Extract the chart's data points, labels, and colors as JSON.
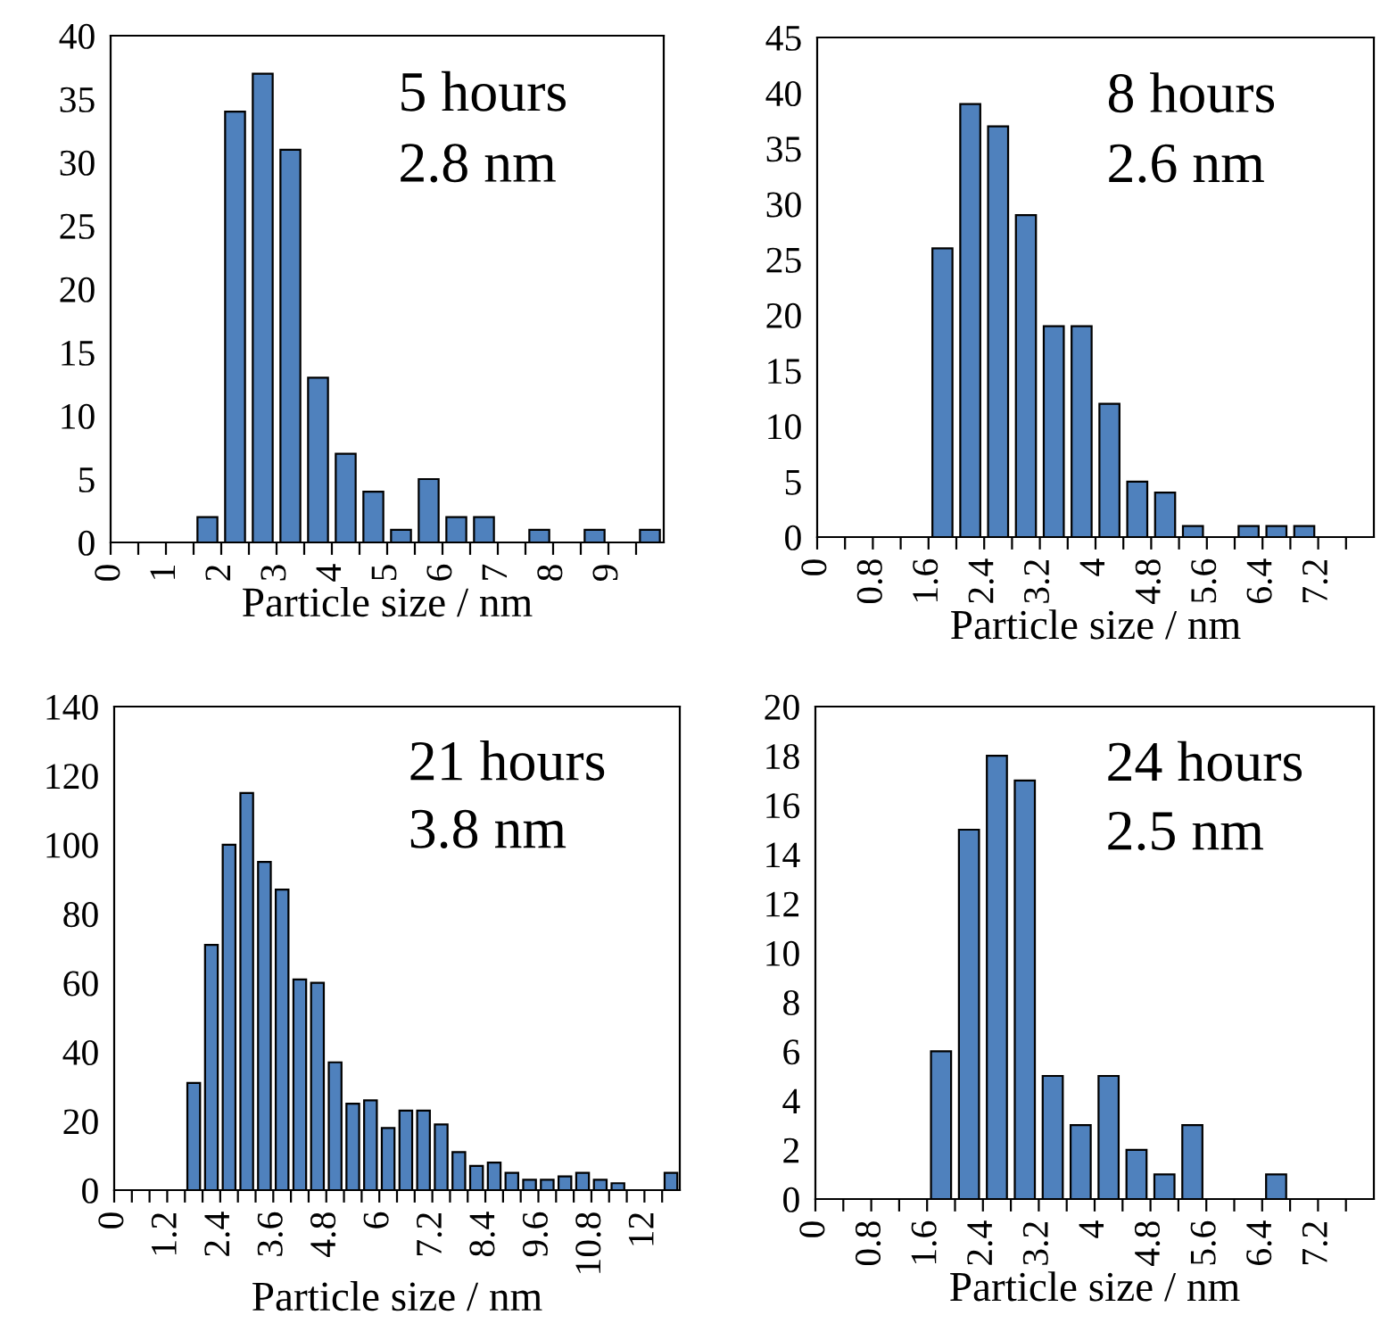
{
  "chart_data": [
    {
      "type": "histogram",
      "xlabel": "Particle size / nm",
      "annotations": [
        "5 hours",
        "2.8 nm"
      ],
      "color": "#4f81bd",
      "bins": [
        0,
        0.5,
        1,
        1.5,
        2,
        2.5,
        3,
        3.5,
        4,
        4.5,
        5,
        5.5,
        6,
        6.5,
        7,
        7.5,
        8,
        8.5,
        9,
        9.5,
        10
      ],
      "values": [
        0,
        0,
        0,
        2,
        34,
        37,
        31,
        13,
        7,
        4,
        1,
        5,
        2,
        2,
        0,
        1,
        0,
        1,
        0,
        1
      ],
      "xlim": [
        0,
        10
      ],
      "ylim": [
        0,
        40
      ],
      "yticks": [
        0,
        5,
        10,
        15,
        20,
        25,
        30,
        35,
        40
      ],
      "xticks": [
        0,
        {
          "value": 0.5,
          "label": null
        },
        1,
        {
          "value": 1.5,
          "label": null
        },
        2,
        {
          "value": 2.5,
          "label": null
        },
        3,
        {
          "value": 3.5,
          "label": null
        },
        4,
        {
          "value": 4.5,
          "label": null
        },
        5,
        {
          "value": 5.5,
          "label": null
        },
        6,
        {
          "value": 6.5,
          "label": null
        },
        7,
        {
          "value": 7.5,
          "label": null
        },
        8,
        {
          "value": 8.5,
          "label": null
        },
        9,
        {
          "value": 9.5,
          "label": null
        }
      ]
    },
    {
      "type": "histogram",
      "xlabel": "Particle size / nm",
      "annotations": [
        "8 hours",
        "2.6 nm"
      ],
      "color": "#4f81bd",
      "bins": [
        0,
        0.4,
        0.8,
        1.2,
        1.6,
        2.0,
        2.4,
        2.8,
        3.2,
        3.6,
        4.0,
        4.4,
        4.8,
        5.2,
        5.6,
        6.0,
        6.4,
        6.8,
        7.2,
        7.6,
        8.0
      ],
      "values": [
        0,
        0,
        0,
        0,
        26,
        39,
        37,
        29,
        19,
        19,
        12,
        5,
        4,
        1,
        0,
        1,
        1,
        1,
        0,
        0
      ],
      "xlim": [
        0,
        8
      ],
      "ylim": [
        0,
        45
      ],
      "yticks": [
        0,
        5,
        10,
        15,
        20,
        25,
        30,
        35,
        40,
        45
      ],
      "xticks": [
        0,
        {
          "value": 0.4,
          "label": null
        },
        0.8,
        {
          "value": 1.2,
          "label": null
        },
        1.6,
        {
          "value": 2.0,
          "label": null
        },
        2.4,
        {
          "value": 2.8,
          "label": null
        },
        3.2,
        {
          "value": 3.6,
          "label": null
        },
        4,
        {
          "value": 4.4,
          "label": null
        },
        4.8,
        {
          "value": 5.2,
          "label": null
        },
        5.6,
        {
          "value": 6.0,
          "label": null
        },
        6.4,
        {
          "value": 6.8,
          "label": null
        },
        7.2,
        {
          "value": 7.6,
          "label": null
        }
      ]
    },
    {
      "type": "histogram",
      "xlabel": "Particle size / nm",
      "annotations": [
        "21 hours",
        "3.8 nm"
      ],
      "color": "#4f81bd",
      "bins": [
        0,
        0.4,
        0.8,
        1.2,
        1.6,
        2.0,
        2.4,
        2.8,
        3.2,
        3.6,
        4.0,
        4.4,
        4.8,
        5.2,
        5.6,
        6.0,
        6.4,
        6.8,
        7.2,
        7.6,
        8.0,
        8.4,
        8.8,
        9.2,
        9.6,
        10.0,
        10.4,
        10.8,
        11.2,
        11.6,
        12.0,
        12.4,
        12.8
      ],
      "values": [
        0,
        0,
        0,
        0,
        31,
        71,
        100,
        115,
        95,
        87,
        61,
        60,
        37,
        25,
        26,
        18,
        23,
        23,
        19,
        11,
        7,
        8,
        5,
        3,
        3,
        4,
        5,
        3,
        2,
        0,
        0,
        5
      ],
      "xlim": [
        0,
        12.8
      ],
      "ylim": [
        0,
        140
      ],
      "yticks": [
        0,
        20,
        40,
        60,
        80,
        100,
        120,
        140
      ],
      "xticks": [
        0,
        {
          "value": 0.4,
          "label": null
        },
        {
          "value": 0.8,
          "label": null
        },
        1.2,
        {
          "value": 1.6,
          "label": null
        },
        {
          "value": 2.0,
          "label": null
        },
        2.4,
        {
          "value": 2.8,
          "label": null
        },
        {
          "value": 3.2,
          "label": null
        },
        3.6,
        {
          "value": 4.0,
          "label": null
        },
        {
          "value": 4.4,
          "label": null
        },
        4.8,
        {
          "value": 5.2,
          "label": null
        },
        {
          "value": 5.6,
          "label": null
        },
        6,
        {
          "value": 6.4,
          "label": null
        },
        {
          "value": 6.8,
          "label": null
        },
        7.2,
        {
          "value": 7.6,
          "label": null
        },
        {
          "value": 8.0,
          "label": null
        },
        8.4,
        {
          "value": 8.8,
          "label": null
        },
        {
          "value": 9.2,
          "label": null
        },
        9.6,
        {
          "value": 10.0,
          "label": null
        },
        {
          "value": 10.4,
          "label": null
        },
        10.8,
        {
          "value": 11.2,
          "label": null
        },
        {
          "value": 11.6,
          "label": null
        },
        12,
        {
          "value": 12.4,
          "label": null
        }
      ]
    },
    {
      "type": "histogram",
      "xlabel": "Particle size / nm",
      "annotations": [
        "24 hours",
        "2.5 nm"
      ],
      "color": "#4f81bd",
      "bins": [
        0,
        0.4,
        0.8,
        1.2,
        1.6,
        2.0,
        2.4,
        2.8,
        3.2,
        3.6,
        4.0,
        4.4,
        4.8,
        5.2,
        5.6,
        6.0,
        6.4,
        6.8,
        7.2,
        7.6,
        8.0
      ],
      "values": [
        0,
        0,
        0,
        0,
        6,
        15,
        18,
        17,
        5,
        3,
        5,
        2,
        1,
        3,
        0,
        0,
        1,
        0,
        0,
        0
      ],
      "xlim": [
        0,
        8
      ],
      "ylim": [
        0,
        20
      ],
      "yticks": [
        0,
        2,
        4,
        6,
        8,
        10,
        12,
        14,
        16,
        18,
        20
      ],
      "xticks": [
        0,
        {
          "value": 0.4,
          "label": null
        },
        0.8,
        {
          "value": 1.2,
          "label": null
        },
        1.6,
        {
          "value": 2.0,
          "label": null
        },
        2.4,
        {
          "value": 2.8,
          "label": null
        },
        3.2,
        {
          "value": 3.6,
          "label": null
        },
        4,
        {
          "value": 4.4,
          "label": null
        },
        4.8,
        {
          "value": 5.2,
          "label": null
        },
        5.6,
        {
          "value": 6.0,
          "label": null
        },
        6.4,
        {
          "value": 6.8,
          "label": null
        },
        7.2,
        {
          "value": 7.6,
          "label": null
        }
      ]
    }
  ]
}
